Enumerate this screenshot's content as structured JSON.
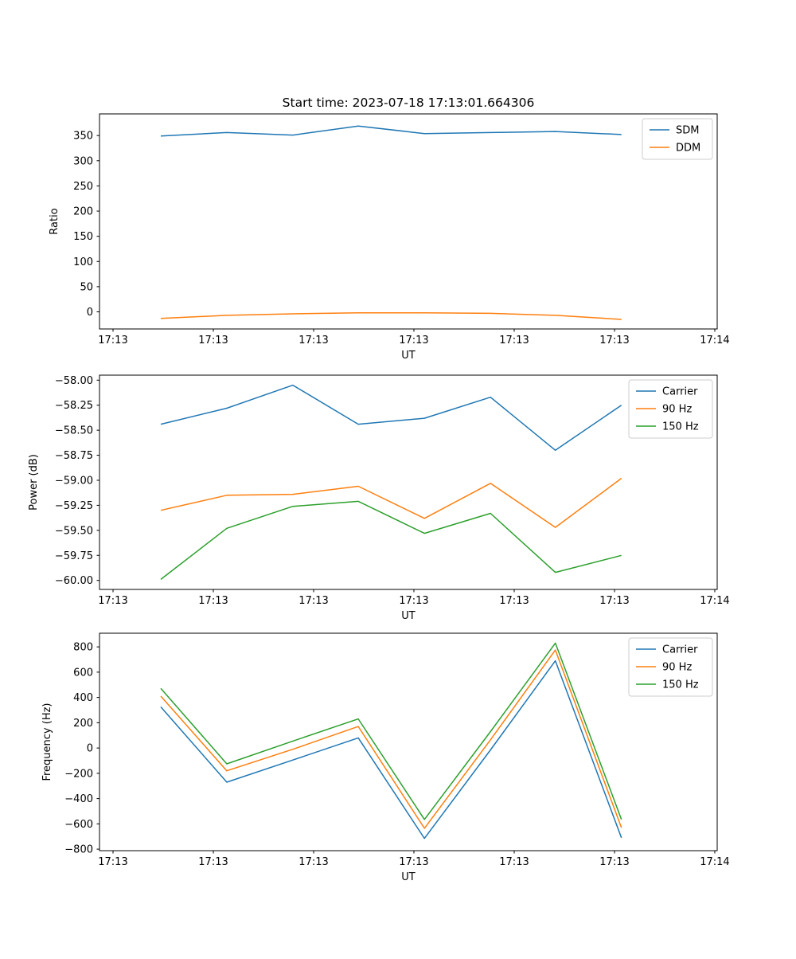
{
  "figure": {
    "background": "#ffffff",
    "title": "Start time: 2023-07-18 17:13:01.664306"
  },
  "colors": {
    "blue": "#1f77b4",
    "orange": "#ff7f0e",
    "green": "#2ca02c",
    "axis": "#000000",
    "legend_border": "#cccccc"
  },
  "chart_data": [
    {
      "type": "line",
      "title": "Start time: 2023-07-18 17:13:01.664306",
      "xlabel": "UT",
      "ylabel": "Ratio",
      "x_ticklabels": [
        "17:13",
        "17:13",
        "17:13",
        "17:13",
        "17:13",
        "17:13",
        "17:14"
      ],
      "y_ticks": [
        0,
        50,
        100,
        150,
        200,
        250,
        300,
        350
      ],
      "y_tick_format": "int",
      "ylim": [
        -34,
        393
      ],
      "grid": false,
      "legend_position": "upper right",
      "legend": [
        "SDM",
        "DDM"
      ],
      "series": [
        {
          "name": "SDM",
          "color": "#1f77b4",
          "values": [
            349,
            356,
            351,
            369,
            354,
            356,
            358,
            352
          ]
        },
        {
          "name": "DDM",
          "color": "#ff7f0e",
          "values": [
            -13,
            -7,
            -4,
            -2,
            -2,
            -3,
            -7,
            -15
          ]
        }
      ]
    },
    {
      "type": "line",
      "title": "",
      "xlabel": "UT",
      "ylabel": "Power (dB)",
      "x_ticklabels": [
        "17:13",
        "17:13",
        "17:13",
        "17:13",
        "17:13",
        "17:13",
        "17:14"
      ],
      "y_ticks": [
        -58.0,
        -58.25,
        -58.5,
        -58.75,
        -59.0,
        -59.25,
        -59.5,
        -59.75,
        -60.0
      ],
      "y_tick_format": "2dp",
      "ylim": [
        -60.09,
        -57.95
      ],
      "grid": false,
      "legend_position": "upper right",
      "legend": [
        "Carrier",
        "90 Hz",
        "150 Hz"
      ],
      "series": [
        {
          "name": "Carrier",
          "color": "#1f77b4",
          "values": [
            -58.44,
            -58.28,
            -58.05,
            -58.44,
            -58.38,
            -58.17,
            -58.7,
            -58.25
          ]
        },
        {
          "name": "90 Hz",
          "color": "#ff7f0e",
          "values": [
            -59.3,
            -59.15,
            -59.14,
            -59.06,
            -59.38,
            -59.03,
            -59.47,
            -58.98
          ]
        },
        {
          "name": "150 Hz",
          "color": "#2ca02c",
          "values": [
            -59.99,
            -59.48,
            -59.26,
            -59.21,
            -59.53,
            -59.33,
            -59.92,
            -59.75
          ]
        }
      ]
    },
    {
      "type": "line",
      "title": "",
      "xlabel": "UT",
      "ylabel": "Frequency (Hz)",
      "x_ticklabels": [
        "17:13",
        "17:13",
        "17:13",
        "17:13",
        "17:13",
        "17:13",
        "17:14"
      ],
      "y_ticks": [
        800,
        600,
        400,
        200,
        0,
        -200,
        -400,
        -600,
        -800
      ],
      "y_tick_format": "int",
      "ylim": [
        -812,
        908
      ],
      "grid": false,
      "legend_position": "upper right",
      "legend": [
        "Carrier",
        "90 Hz",
        "150 Hz"
      ],
      "series": [
        {
          "name": "Carrier",
          "color": "#1f77b4",
          "values": [
            325,
            -270,
            -95,
            80,
            -715,
            -15,
            690,
            -710
          ]
        },
        {
          "name": "90 Hz",
          "color": "#ff7f0e",
          "values": [
            410,
            -180,
            -10,
            170,
            -635,
            65,
            775,
            -630
          ]
        },
        {
          "name": "150 Hz",
          "color": "#2ca02c",
          "values": [
            472,
            -125,
            55,
            230,
            -565,
            130,
            830,
            -565
          ]
        }
      ]
    }
  ]
}
